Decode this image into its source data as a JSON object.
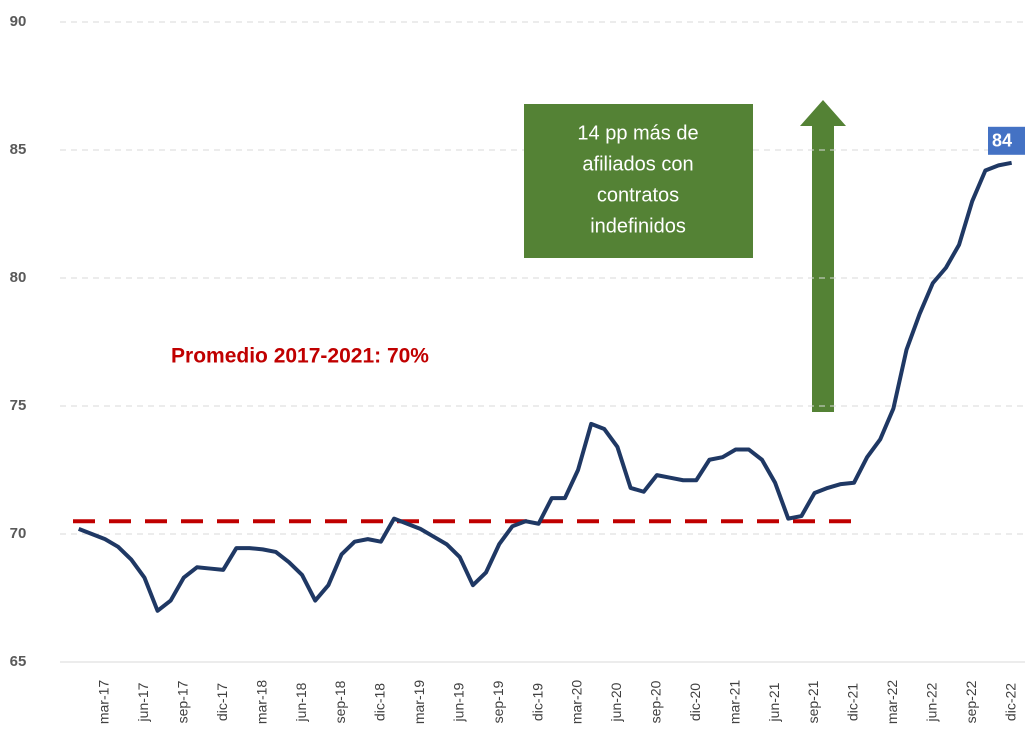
{
  "chart_data": {
    "type": "line",
    "categories": [
      null,
      null,
      "mar-17",
      null,
      null,
      "jun-17",
      null,
      null,
      "sep-17",
      null,
      null,
      "dic-17",
      null,
      null,
      "mar-18",
      null,
      null,
      "jun-18",
      null,
      null,
      "sep-18",
      null,
      null,
      "dic-18",
      null,
      null,
      "mar-19",
      null,
      null,
      "jun-19",
      null,
      null,
      "sep-19",
      null,
      null,
      "dic-19",
      null,
      null,
      "mar-20",
      null,
      null,
      "jun-20",
      null,
      null,
      "sep-20",
      null,
      null,
      "dic-20",
      null,
      null,
      "mar-21",
      null,
      null,
      "jun-21",
      null,
      null,
      "sep-21",
      null,
      null,
      "dic-21",
      null,
      null,
      "mar-22",
      null,
      null,
      "jun-22",
      null,
      null,
      "sep-22",
      null,
      null,
      "dic-22"
    ],
    "series": [
      {
        "color": "#1f3864",
        "values": [
          70.2,
          70.0,
          69.8,
          69.5,
          69.0,
          68.3,
          67.0,
          67.4,
          68.3,
          68.7,
          68.65,
          68.6,
          69.45,
          69.45,
          69.4,
          69.3,
          68.9,
          68.4,
          67.4,
          68.0,
          69.2,
          69.7,
          69.8,
          69.7,
          70.6,
          70.4,
          70.2,
          69.9,
          69.6,
          69.1,
          68.0,
          68.5,
          69.6,
          70.3,
          70.5,
          70.4,
          71.4,
          71.4,
          72.5,
          74.3,
          74.1,
          73.4,
          71.8,
          71.65,
          72.3,
          72.2,
          72.1,
          72.1,
          72.9,
          73.0,
          73.3,
          73.3,
          72.9,
          72.0,
          70.6,
          70.7,
          71.6,
          71.8,
          71.95,
          72.0,
          73.0,
          73.7,
          74.9,
          77.2,
          78.6,
          79.8,
          80.4,
          81.3,
          83.0,
          84.2,
          84.4,
          84.5
        ],
        "last_label": "84"
      }
    ],
    "ylim": [
      65,
      90
    ],
    "yticks": [
      65,
      70,
      75,
      80,
      85,
      90
    ],
    "grid": true,
    "average": {
      "text": "Promedio 2017-2021: 70%",
      "value": 70.5,
      "color": "#c00000"
    },
    "callout": {
      "lines": [
        "14 pp más de",
        "afiliados con",
        "contratos",
        "indefinidos"
      ],
      "color": "#548235"
    }
  }
}
